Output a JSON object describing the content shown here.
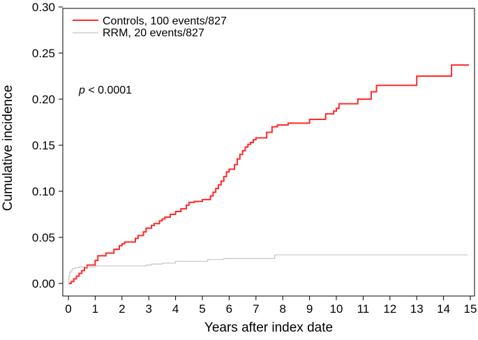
{
  "chart_data": {
    "type": "line",
    "title": "",
    "xlabel": "Years after index date",
    "ylabel": "Cumulative incidence",
    "xlim": [
      0,
      15
    ],
    "ylim": [
      0,
      0.3
    ],
    "xticks": [
      0,
      1,
      2,
      3,
      4,
      5,
      6,
      7,
      8,
      9,
      10,
      11,
      12,
      13,
      14,
      15
    ],
    "xtick_labels": [
      "0",
      "1",
      "2",
      "3",
      "4",
      "5",
      "6",
      "7",
      "8",
      "9",
      "10",
      "11",
      "12",
      "13",
      "14",
      "15"
    ],
    "yticks": [
      0,
      0.05,
      0.1,
      0.15,
      0.2,
      0.25,
      0.3
    ],
    "ytick_labels": [
      "0.00",
      "0.05",
      "0.10",
      "0.15",
      "0.20",
      "0.25",
      "0.30"
    ],
    "grid": false,
    "legend_position": "top-left",
    "annotation": {
      "italic": "p",
      "rest": " < 0.0001"
    },
    "series": [
      {
        "name": "Controls, 100 events/827",
        "color": "#ff2a2a",
        "step": true,
        "x": [
          0,
          0.1,
          0.2,
          0.3,
          0.4,
          0.5,
          0.6,
          0.7,
          1.0,
          1.1,
          1.4,
          1.7,
          1.9,
          2.0,
          2.1,
          2.5,
          2.6,
          2.8,
          2.9,
          3.1,
          3.2,
          3.4,
          3.5,
          3.6,
          3.8,
          4.0,
          4.2,
          4.4,
          4.5,
          4.7,
          5.0,
          5.3,
          5.4,
          5.5,
          5.6,
          5.7,
          5.8,
          5.9,
          6.0,
          6.2,
          6.3,
          6.4,
          6.5,
          6.6,
          6.7,
          6.8,
          6.9,
          7.0,
          7.4,
          7.6,
          7.8,
          8.2,
          9.0,
          9.6,
          9.9,
          10.0,
          10.1,
          10.8,
          11.3,
          11.5,
          13.0,
          14.3,
          14.95
        ],
        "y": [
          0.0,
          0.002,
          0.005,
          0.008,
          0.011,
          0.014,
          0.017,
          0.02,
          0.025,
          0.03,
          0.033,
          0.037,
          0.041,
          0.043,
          0.045,
          0.049,
          0.052,
          0.056,
          0.06,
          0.063,
          0.065,
          0.068,
          0.07,
          0.072,
          0.075,
          0.078,
          0.081,
          0.085,
          0.088,
          0.089,
          0.091,
          0.095,
          0.099,
          0.103,
          0.107,
          0.111,
          0.116,
          0.121,
          0.124,
          0.129,
          0.135,
          0.14,
          0.144,
          0.148,
          0.151,
          0.153,
          0.156,
          0.158,
          0.164,
          0.17,
          0.172,
          0.174,
          0.178,
          0.184,
          0.187,
          0.19,
          0.195,
          0.2,
          0.208,
          0.215,
          0.225,
          0.237,
          0.237
        ]
      },
      {
        "name": "RRM, 20 events/827",
        "color": "#c4c4c4",
        "step": true,
        "x": [
          0,
          0.02,
          0.05,
          0.1,
          0.15,
          0.25,
          0.4,
          0.6,
          1.0,
          1.3,
          2.9,
          3.1,
          3.5,
          4.0,
          5.2,
          5.8,
          7.7,
          14.9
        ],
        "y": [
          0.0,
          0.008,
          0.012,
          0.014,
          0.016,
          0.017,
          0.018,
          0.018,
          0.019,
          0.019,
          0.02,
          0.021,
          0.022,
          0.024,
          0.026,
          0.027,
          0.031,
          0.031
        ]
      }
    ]
  }
}
